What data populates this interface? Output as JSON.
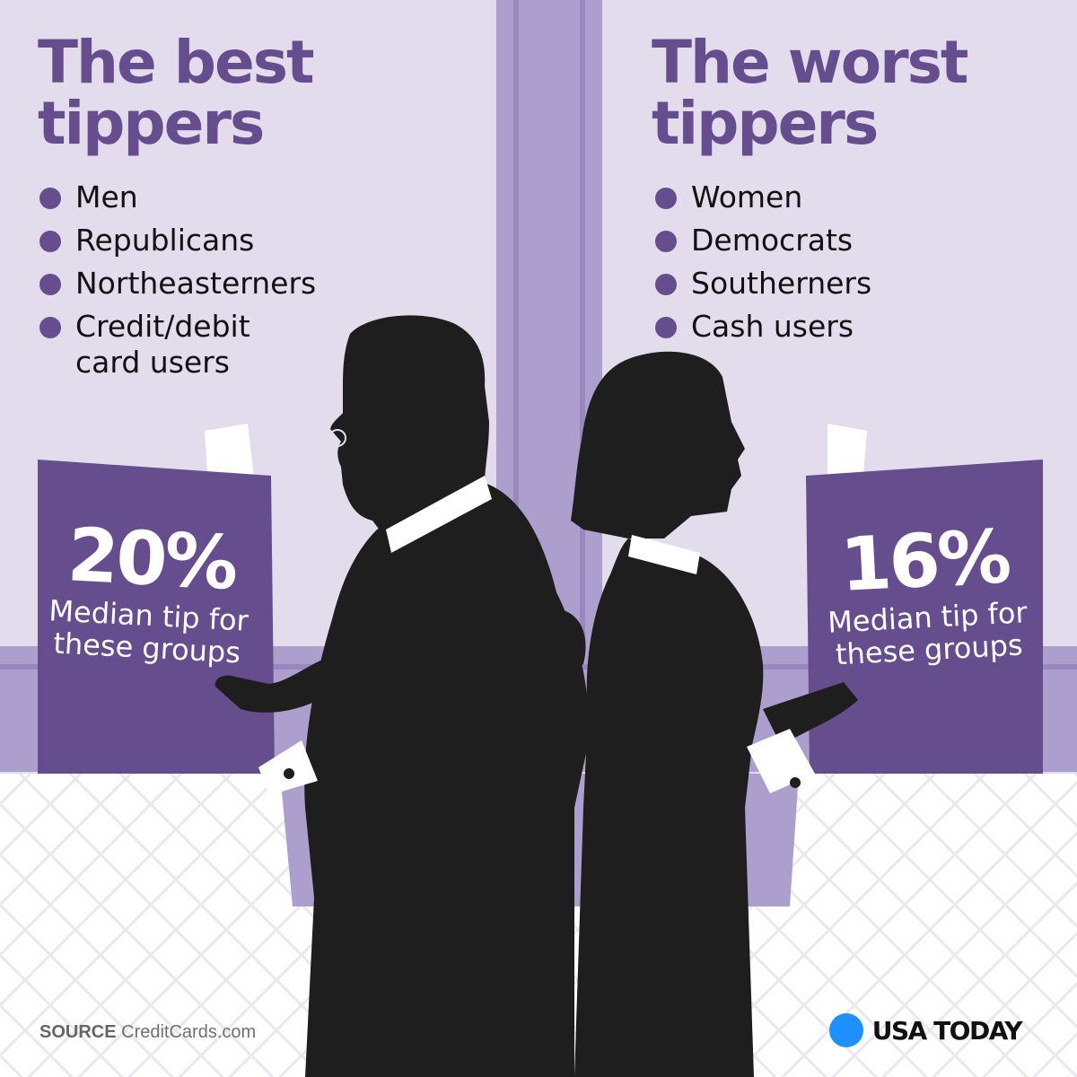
{
  "best": {
    "heading": [
      "The best",
      "tippers"
    ],
    "groups": [
      "Men",
      "Republicans",
      "Northeasterners",
      "Credit/debit card users"
    ],
    "tip_value": "20%",
    "tip_caption": "Median tip for these groups"
  },
  "worst": {
    "heading": [
      "The worst",
      "tippers"
    ],
    "groups": [
      "Women",
      "Democrats",
      "Southerners",
      "Cash users"
    ],
    "tip_value": "16%",
    "tip_caption": "Median tip for these groups"
  },
  "source": {
    "label": "SOURCE",
    "name": "CreditCards.com"
  },
  "brand": {
    "name": "USA TODAY"
  },
  "colors": {
    "heading": "#664d8e",
    "bullet": "#664d8e",
    "menu_card": "#664d8e",
    "wall": "#e2dcec",
    "window_frame": "#ad9fcd",
    "silhouette": "#1e1e1e",
    "brand_dot": "#1e90ff"
  }
}
